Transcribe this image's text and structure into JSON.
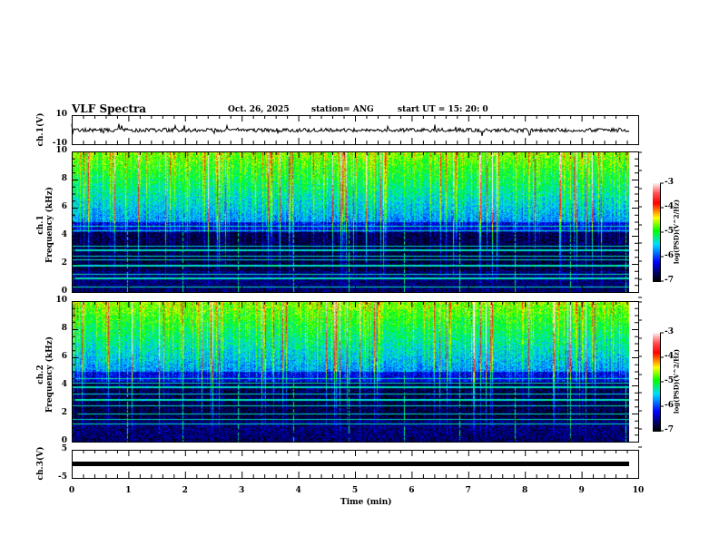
{
  "header": {
    "title": "VLF Spectra",
    "date": "Oct. 26, 2025",
    "station": "station= ANG",
    "start": "start  UT =   15: 20: 0"
  },
  "chart_data": [
    {
      "type": "line",
      "name": "ch1 waveform",
      "ylabel": "ch.1(V)",
      "ylim": [
        -10,
        10
      ],
      "yticks": [
        "10",
        "-10"
      ],
      "xlim": [
        0,
        10
      ]
    },
    {
      "type": "heatmap",
      "name": "ch1 spectrogram",
      "ylabel_top": "ch.1",
      "ylabel": "Frequency (kHz)",
      "ylim": [
        0,
        10
      ],
      "yticks": [
        "0",
        "2",
        "4",
        "6",
        "8",
        "10"
      ],
      "xlim": [
        0,
        10
      ],
      "colorbar": {
        "label": "log(PSD)(V^2/Hz)",
        "range": [
          -7,
          -3
        ],
        "ticks": [
          "-3",
          "-4",
          "-5",
          "-6",
          "-7"
        ]
      },
      "bands_khz": [
        0.4,
        1.0,
        1.3,
        1.9,
        2.3,
        2.6,
        3.0,
        3.3,
        4.4,
        4.7
      ]
    },
    {
      "type": "heatmap",
      "name": "ch2 spectrogram",
      "ylabel_top": "ch.2",
      "ylabel": "Frequency (kHz)",
      "ylim": [
        0,
        10
      ],
      "yticks": [
        "0",
        "2",
        "4",
        "6",
        "8",
        "10"
      ],
      "xlim": [
        0,
        10
      ],
      "colorbar": {
        "label": "log(PSD)(V^2/Hz)",
        "range": [
          -7,
          -3
        ],
        "ticks": [
          "-3",
          "-4",
          "-5",
          "-6",
          "-7"
        ]
      },
      "bands_khz": [
        1.3,
        1.6,
        2.0,
        2.6,
        3.0,
        3.4,
        3.9,
        4.2,
        4.5
      ]
    },
    {
      "type": "line",
      "name": "ch3 waveform",
      "ylabel": "ch.3(V)",
      "ylim": [
        -5,
        5
      ],
      "yticks": [
        "5",
        "-5"
      ],
      "xlim": [
        0,
        10
      ],
      "constant_value": 0
    }
  ],
  "xaxis": {
    "label": "Time  (min)",
    "ticks": [
      "0",
      "1",
      "2",
      "3",
      "4",
      "5",
      "6",
      "7",
      "8",
      "9",
      "10"
    ]
  }
}
